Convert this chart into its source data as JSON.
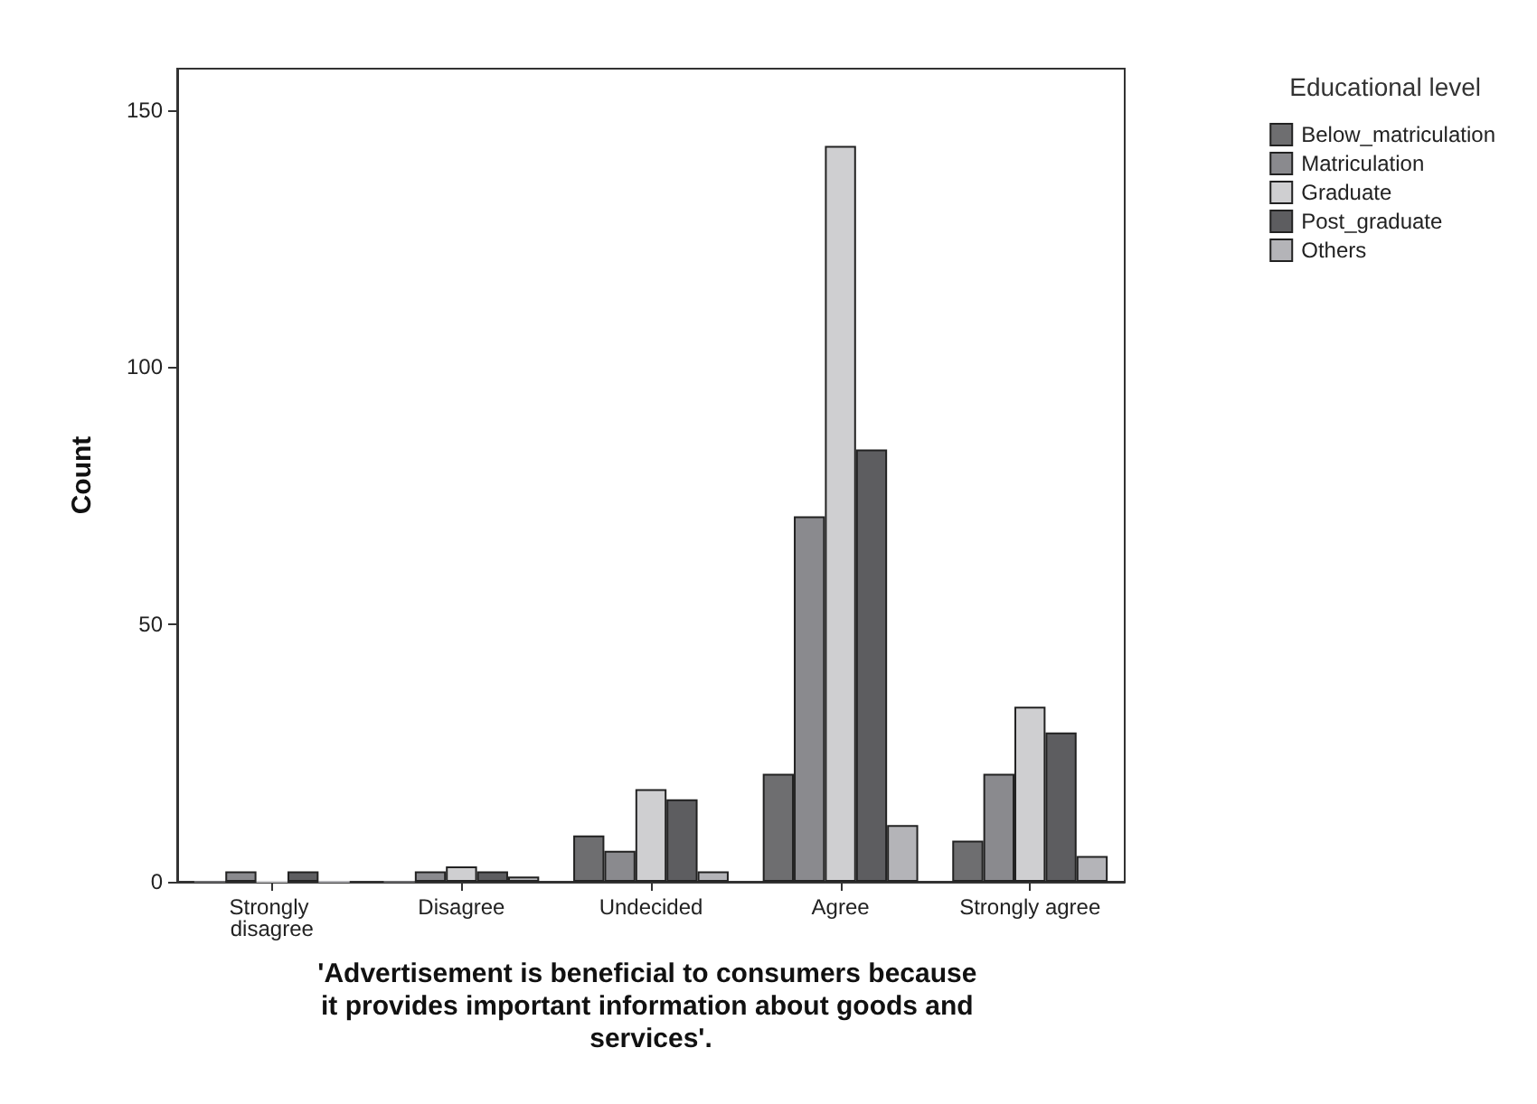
{
  "chart_data": {
    "type": "bar",
    "xlabel": "'Advertisement is beneficial to consumers because it provides important information about goods and services'.",
    "ylabel": "Count",
    "legend_title": "Educational level",
    "categories": [
      "Strongly disagree",
      "Disagree",
      "Undecided",
      "Agree",
      "Strongly agree"
    ],
    "series": [
      {
        "name": "Below_matriculation",
        "color": "#6e6e70",
        "values": [
          0,
          0,
          9,
          21,
          8
        ]
      },
      {
        "name": "Matriculation",
        "color": "#8a8a8e",
        "values": [
          2,
          2,
          6,
          71,
          21
        ]
      },
      {
        "name": "Graduate",
        "color": "#cfcfd1",
        "values": [
          0,
          3,
          18,
          143,
          34
        ]
      },
      {
        "name": "Post_graduate",
        "color": "#5d5d60",
        "values": [
          2,
          2,
          16,
          84,
          29
        ]
      },
      {
        "name": "Others",
        "color": "#b4b4b8",
        "values": [
          0,
          1,
          2,
          11,
          5
        ]
      }
    ],
    "ylim": [
      0,
      158
    ],
    "yticks": [
      0,
      50,
      100,
      150
    ],
    "grid": false,
    "legend": "top right"
  }
}
